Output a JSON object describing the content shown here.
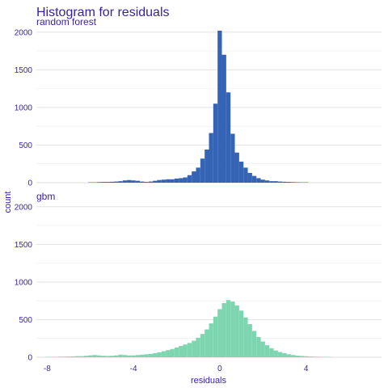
{
  "chart_data": {
    "type": "bar",
    "title": "Histogram for residuals",
    "xlabel": "residuals",
    "ylabel": "count",
    "xlim": [
      -8.5,
      7.5
    ],
    "ylim": [
      0,
      2030
    ],
    "x_ticks": [
      -8,
      -4,
      0,
      4
    ],
    "y_ticks": [
      0,
      500,
      1000,
      1500,
      2000
    ],
    "grid": true,
    "legend": "none",
    "bin_width": 0.2,
    "facets": [
      {
        "name": "random forest",
        "color": "#3564b5",
        "x": [
          -6.0,
          -5.8,
          -5.6,
          -5.4,
          -5.2,
          -5.0,
          -4.8,
          -4.6,
          -4.4,
          -4.2,
          -4.0,
          -3.8,
          -3.6,
          -3.4,
          -3.2,
          -3.0,
          -2.8,
          -2.6,
          -2.4,
          -2.2,
          -2.0,
          -1.8,
          -1.6,
          -1.4,
          -1.2,
          -1.0,
          -0.8,
          -0.6,
          -0.4,
          -0.2,
          0.0,
          0.2,
          0.4,
          0.6,
          0.8,
          1.0,
          1.2,
          1.4,
          1.6,
          1.8,
          2.0,
          2.2,
          2.4,
          2.6,
          2.8,
          3.0,
          3.2,
          3.4,
          3.6,
          3.8,
          4.0
        ],
        "values": [
          5,
          5,
          8,
          10,
          10,
          12,
          15,
          20,
          30,
          35,
          30,
          25,
          15,
          10,
          15,
          25,
          35,
          40,
          45,
          45,
          55,
          60,
          70,
          100,
          150,
          200,
          320,
          440,
          660,
          1050,
          2020,
          1700,
          1200,
          650,
          400,
          280,
          200,
          130,
          90,
          60,
          40,
          30,
          20,
          20,
          15,
          12,
          10,
          8,
          6,
          5,
          5
        ]
      },
      {
        "name": "gbm",
        "color": "#7dd6b0",
        "x": [
          -8.0,
          -7.8,
          -7.6,
          -7.4,
          -7.2,
          -7.0,
          -6.8,
          -6.6,
          -6.4,
          -6.2,
          -6.0,
          -5.8,
          -5.6,
          -5.4,
          -5.2,
          -5.0,
          -4.8,
          -4.6,
          -4.4,
          -4.2,
          -4.0,
          -3.8,
          -3.6,
          -3.4,
          -3.2,
          -3.0,
          -2.8,
          -2.6,
          -2.4,
          -2.2,
          -2.0,
          -1.8,
          -1.6,
          -1.4,
          -1.2,
          -1.0,
          -0.8,
          -0.6,
          -0.4,
          -0.2,
          0.0,
          0.2,
          0.4,
          0.6,
          0.8,
          1.0,
          1.2,
          1.4,
          1.6,
          1.8,
          2.0,
          2.2,
          2.4,
          2.6,
          2.8,
          3.0,
          3.2,
          3.4,
          3.6,
          3.8,
          4.0,
          4.2,
          4.4,
          4.6,
          4.8,
          5.0,
          5.2
        ],
        "values": [
          5,
          5,
          5,
          8,
          8,
          10,
          12,
          15,
          15,
          20,
          25,
          30,
          25,
          20,
          18,
          20,
          25,
          35,
          30,
          25,
          25,
          30,
          35,
          40,
          45,
          55,
          65,
          80,
          95,
          110,
          130,
          150,
          170,
          190,
          220,
          260,
          310,
          370,
          450,
          540,
          640,
          720,
          760,
          740,
          690,
          620,
          530,
          440,
          350,
          270,
          210,
          160,
          120,
          90,
          70,
          55,
          40,
          30,
          22,
          18,
          14,
          10,
          8,
          6,
          5,
          4,
          3
        ]
      }
    ]
  }
}
